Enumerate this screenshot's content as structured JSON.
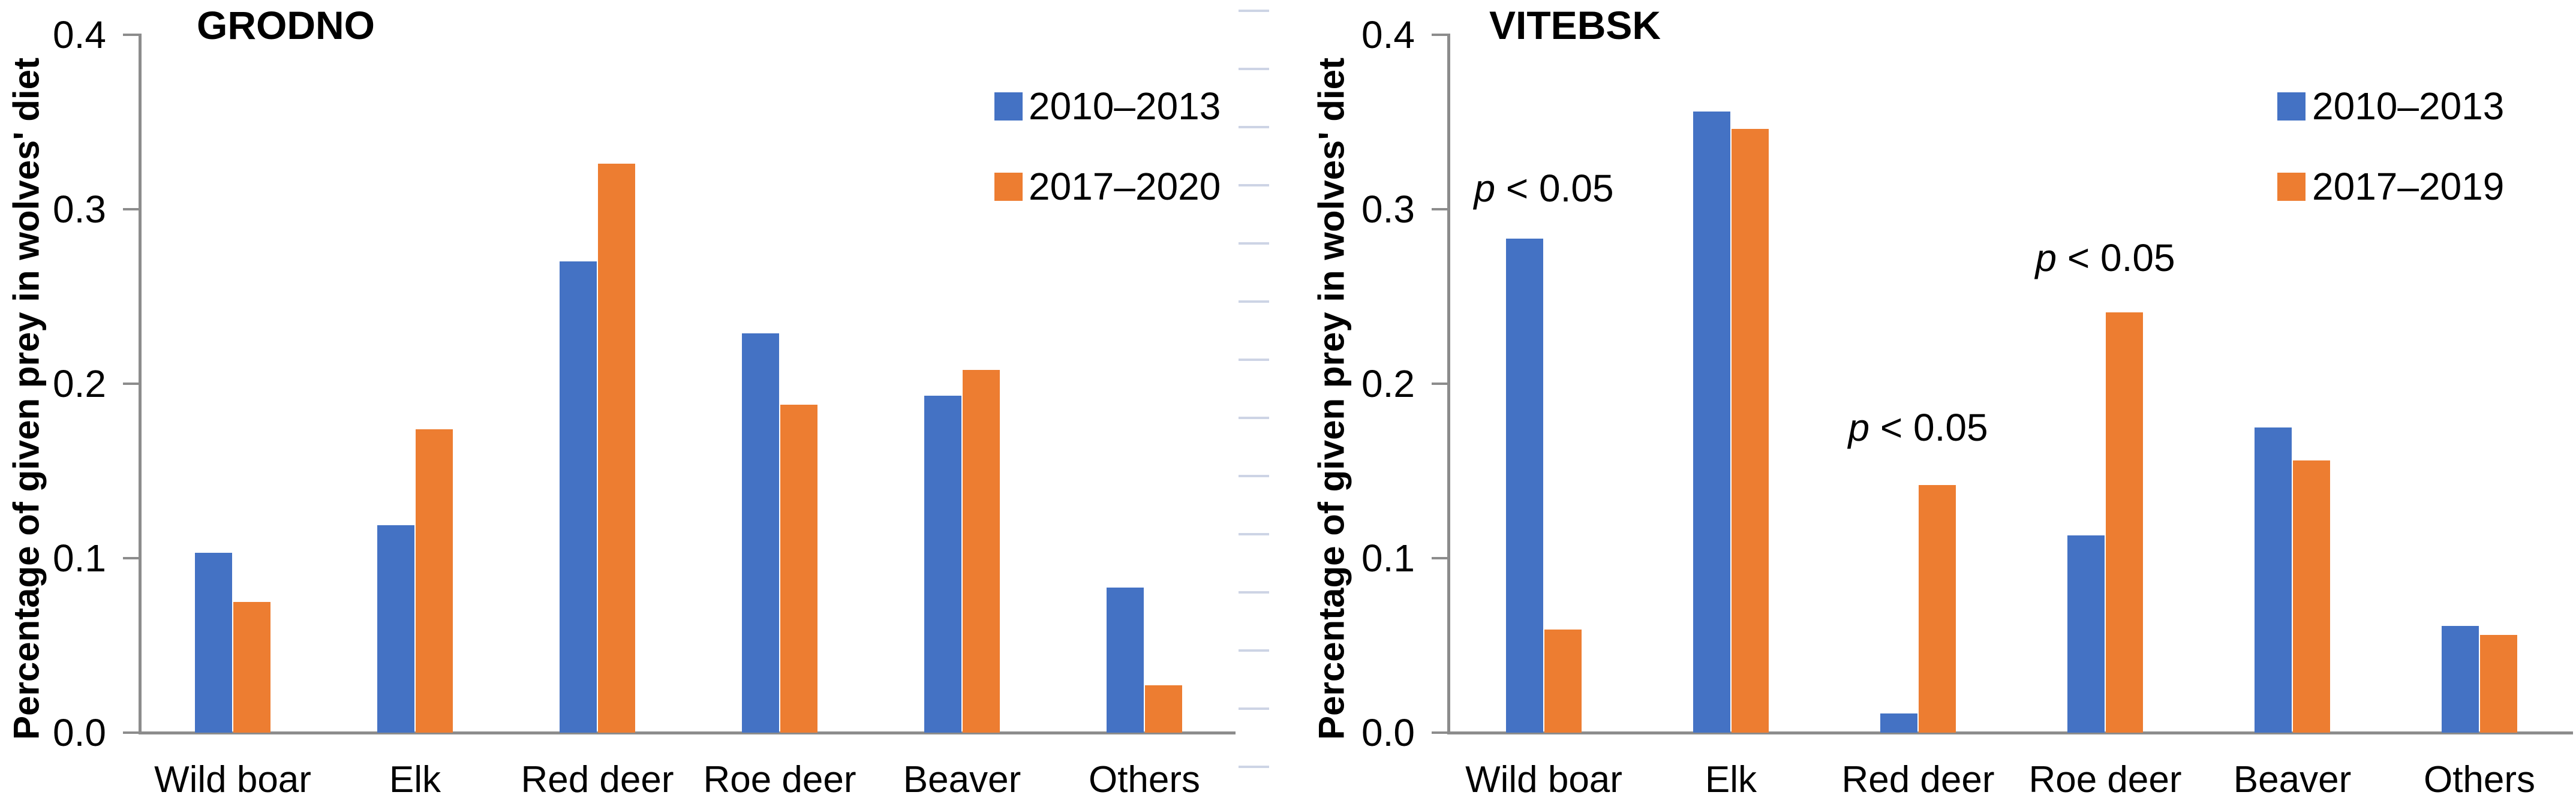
{
  "figure": {
    "y_axis_label": "Percentage of given prey in wolves' diet",
    "colors": {
      "series_blue": "#4472C4",
      "series_orange": "#ED7D31",
      "axis_gray": "#8C8C8C",
      "divider_dash": "#CDD4E5"
    }
  },
  "chart_data": [
    {
      "type": "bar",
      "title": "GRODNO",
      "ylabel": "Percentage of given prey in wolves' diet",
      "ylim": [
        0,
        0.4
      ],
      "yticks": [
        "0.0",
        "0.1",
        "0.2",
        "0.3",
        "0.4"
      ],
      "grid": false,
      "legend_position": "top-right",
      "categories": [
        "Wild boar",
        "Elk",
        "Red deer",
        "Roe deer",
        "Beaver",
        "Others"
      ],
      "series": [
        {
          "name": "2010–2013",
          "color": "#4472C4",
          "values": [
            0.103,
            0.119,
            0.27,
            0.229,
            0.193,
            0.083
          ]
        },
        {
          "name": "2017–2020",
          "color": "#ED7D31",
          "values": [
            0.075,
            0.174,
            0.326,
            0.188,
            0.208,
            0.027
          ]
        }
      ],
      "annotations": []
    },
    {
      "type": "bar",
      "title": "VITEBSK",
      "ylabel": "Percentage of given prey in wolves' diet",
      "ylim": [
        0,
        0.4
      ],
      "yticks": [
        "0.0",
        "0.1",
        "0.2",
        "0.3",
        "0.4"
      ],
      "grid": false,
      "legend_position": "top-right",
      "categories": [
        "Wild boar",
        "Elk",
        "Red deer",
        "Roe deer",
        "Beaver",
        "Others"
      ],
      "series": [
        {
          "name": "2010–2013",
          "color": "#4472C4",
          "values": [
            0.283,
            0.356,
            0.011,
            0.113,
            0.175,
            0.061
          ]
        },
        {
          "name": "2017–2019",
          "color": "#ED7D31",
          "values": [
            0.059,
            0.346,
            0.142,
            0.241,
            0.156,
            0.056
          ]
        }
      ],
      "annotations": [
        {
          "category": "Wild boar",
          "italic": "p",
          "rest": " < 0.05",
          "level": 0.312
        },
        {
          "category": "Red deer",
          "italic": "p",
          "rest": " < 0.05",
          "level": 0.175
        },
        {
          "category": "Roe deer",
          "italic": "p",
          "rest": " < 0.05",
          "level": 0.272
        }
      ]
    }
  ]
}
